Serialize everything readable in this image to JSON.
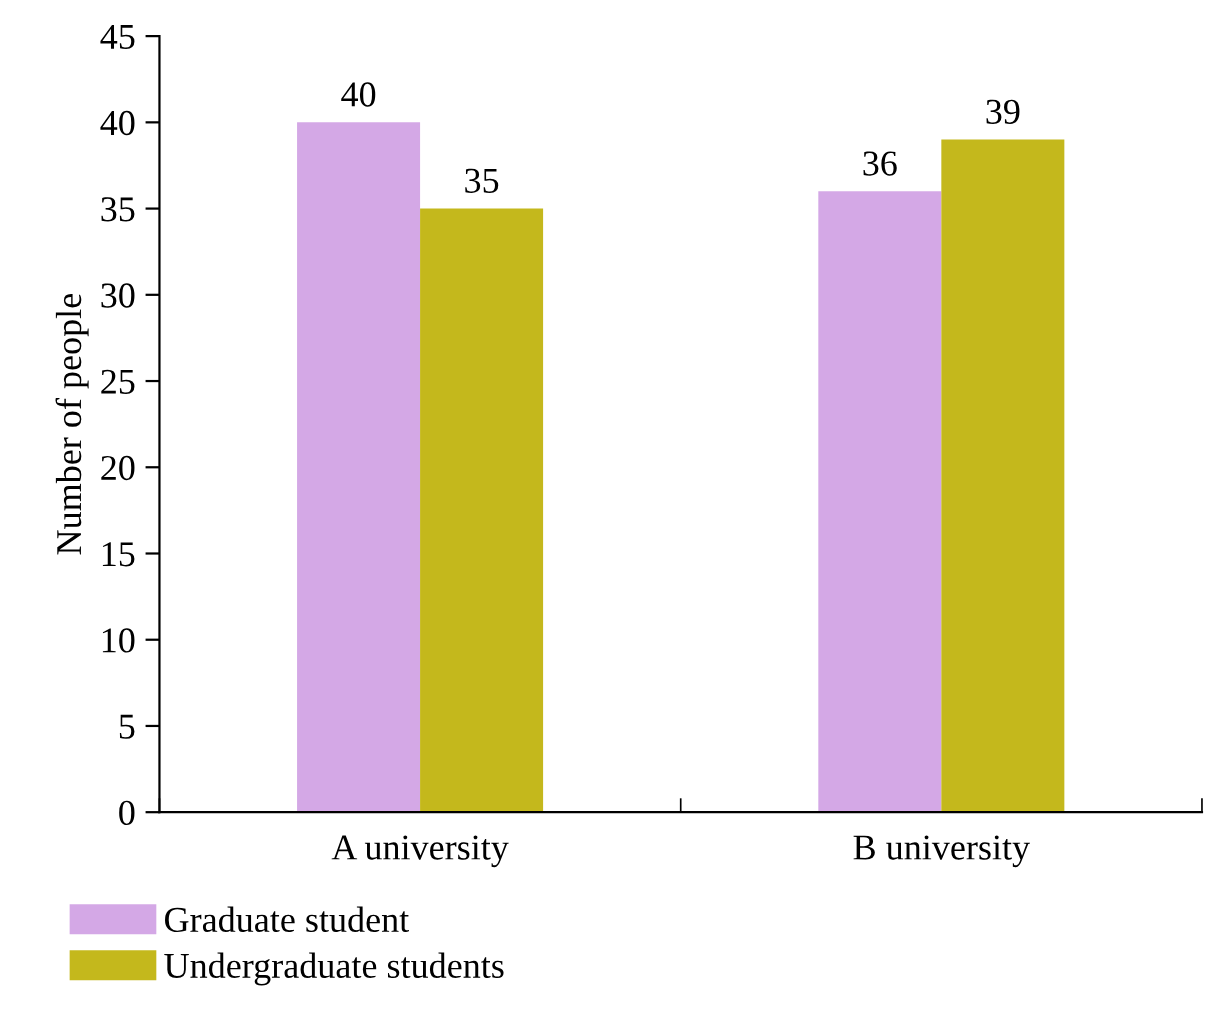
{
  "chart_data": {
    "type": "bar",
    "ylabel": "Number of people",
    "categories": [
      "A university",
      "B university"
    ],
    "series": [
      {
        "name": "Graduate student",
        "color": "#d4a8e6",
        "values": [
          40,
          36
        ]
      },
      {
        "name": "Undergraduate students",
        "color": "#c4b81c",
        "values": [
          35,
          39
        ]
      }
    ],
    "ylim": [
      0,
      45
    ],
    "yticks": [
      0,
      5,
      10,
      15,
      20,
      25,
      30,
      35,
      40,
      45
    ],
    "data_labels": true,
    "legend": "bottom",
    "grid": false
  }
}
